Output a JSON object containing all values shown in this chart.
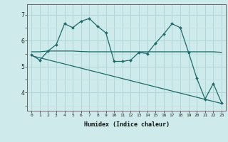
{
  "xlabel": "Humidex (Indice chaleur)",
  "bg_color": "#ceeaea",
  "line_color": "#1a6b6b",
  "grid_color": "#aad4d4",
  "grid_minor_color": "#bddede",
  "xlim": [
    -0.5,
    23.5
  ],
  "ylim": [
    3.3,
    7.4
  ],
  "yticks": [
    4,
    5,
    6,
    7
  ],
  "xticks": [
    0,
    1,
    2,
    3,
    4,
    5,
    6,
    7,
    8,
    9,
    10,
    11,
    12,
    13,
    14,
    15,
    16,
    17,
    18,
    19,
    20,
    21,
    22,
    23
  ],
  "series1_x": [
    0,
    1,
    2,
    3,
    4,
    5,
    6,
    7,
    8,
    9,
    10,
    11,
    12,
    13,
    14,
    15,
    16,
    17,
    18,
    19,
    20,
    21,
    22,
    23
  ],
  "series1_y": [
    5.45,
    5.25,
    5.6,
    5.85,
    6.65,
    6.5,
    6.75,
    6.85,
    6.55,
    6.3,
    5.2,
    5.2,
    5.25,
    5.55,
    5.5,
    5.9,
    6.25,
    6.65,
    6.5,
    5.55,
    4.55,
    3.75,
    4.35,
    3.6
  ],
  "series2_x": [
    0,
    1,
    2,
    3,
    4,
    5,
    6,
    7,
    8,
    9,
    10,
    11,
    12,
    13,
    14,
    15,
    16,
    17,
    18,
    19,
    20,
    21,
    22,
    23
  ],
  "series2_y": [
    5.57,
    5.57,
    5.6,
    5.6,
    5.6,
    5.6,
    5.58,
    5.57,
    5.57,
    5.57,
    5.57,
    5.57,
    5.57,
    5.57,
    5.57,
    5.57,
    5.57,
    5.57,
    5.57,
    5.57,
    5.57,
    5.57,
    5.57,
    5.55
  ],
  "series3_x": [
    0,
    23
  ],
  "series3_y": [
    5.42,
    3.58
  ]
}
